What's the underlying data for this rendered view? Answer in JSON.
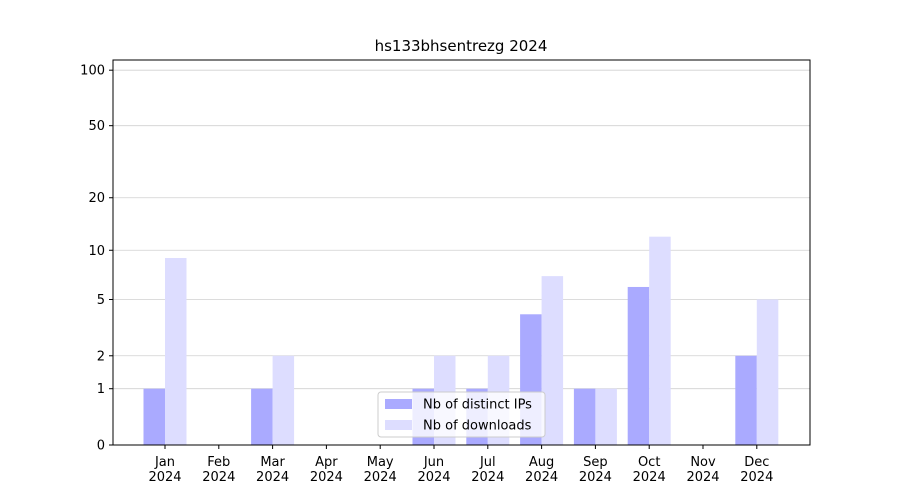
{
  "chart_data": {
    "type": "bar",
    "title": "hs133bhsentrezg 2024",
    "categories": [
      "Jan 2024",
      "Feb 2024",
      "Mar 2024",
      "Apr 2024",
      "May 2024",
      "Jun 2024",
      "Jul 2024",
      "Aug 2024",
      "Sep 2024",
      "Oct 2024",
      "Nov 2024",
      "Dec 2024"
    ],
    "series": [
      {
        "name": "Nb of distinct IPs",
        "color": "#aaaaff",
        "values": [
          1,
          0,
          1,
          0,
          0,
          1,
          1,
          4,
          1,
          6,
          0,
          2
        ]
      },
      {
        "name": "Nb of downloads",
        "color": "#ddddff",
        "values": [
          9,
          0,
          2,
          0,
          0,
          2,
          2,
          7,
          1,
          12,
          0,
          5
        ]
      }
    ],
    "yscale": "log1p",
    "ylim": [
      0,
      113.5
    ],
    "yticks": [
      0,
      1,
      2,
      5,
      10,
      20,
      50,
      100
    ],
    "grid": true,
    "legend": "lower center"
  }
}
